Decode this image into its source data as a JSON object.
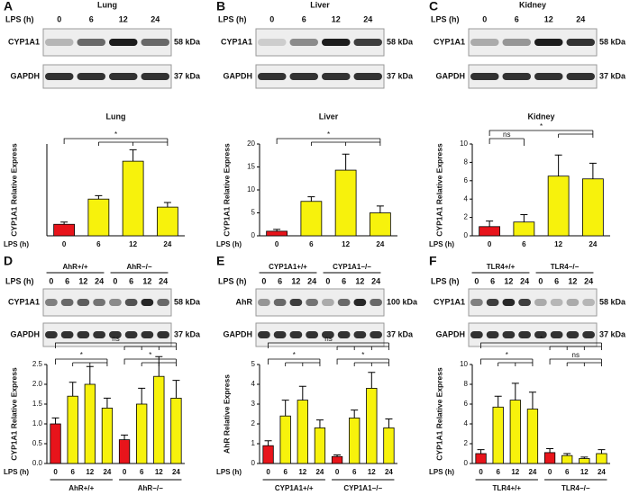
{
  "blots": [
    {
      "letter": "A",
      "title": "Lung",
      "lps_label": "LPS (h)",
      "lanes": [
        "0",
        "6",
        "12",
        "24"
      ],
      "rows": [
        {
          "protein": "CYP1A1",
          "size": "58 kDa"
        },
        {
          "protein": "GAPDH",
          "size": "37 kDa"
        }
      ]
    },
    {
      "letter": "B",
      "title": "Liver",
      "lps_label": "LPS (h)",
      "lanes": [
        "0",
        "6",
        "12",
        "24"
      ],
      "rows": [
        {
          "protein": "CYP1A1",
          "size": "58 kDa"
        },
        {
          "protein": "GAPDH",
          "size": "37 kDa"
        }
      ]
    },
    {
      "letter": "C",
      "title": "Kidney",
      "lps_label": "LPS (h)",
      "lanes": [
        "0",
        "6",
        "12",
        "24"
      ],
      "rows": [
        {
          "protein": "CYP1A1",
          "size": "58 kDa"
        },
        {
          "protein": "GAPDH",
          "size": "37 kDa"
        }
      ]
    },
    {
      "letter": "D",
      "groups": [
        "AhR+/+",
        "AhR−/−"
      ],
      "lps_label": "LPS (h)",
      "lanes": [
        "0",
        "6",
        "12",
        "24",
        "0",
        "6",
        "12",
        "24"
      ],
      "rows": [
        {
          "protein": "CYP1A1",
          "size": "58 kDa"
        },
        {
          "protein": "GAPDH",
          "size": "37 kDa"
        }
      ]
    },
    {
      "letter": "E",
      "groups": [
        "CYP1A1+/+",
        "CYP1A1−/−"
      ],
      "lps_label": "LPS (h)",
      "lanes": [
        "0",
        "6",
        "12",
        "24",
        "0",
        "6",
        "12",
        "24"
      ],
      "rows": [
        {
          "protein": "AhR",
          "size": "100 kDa"
        },
        {
          "protein": "GAPDH",
          "size": "37 kDa"
        }
      ]
    },
    {
      "letter": "F",
      "groups": [
        "TLR4+/+",
        "TLR4−/−"
      ],
      "lps_label": "LPS (h)",
      "lanes": [
        "0",
        "6",
        "12",
        "24",
        "0",
        "6",
        "12",
        "24"
      ],
      "rows": [
        {
          "protein": "CYP1A1",
          "size": "58 kDa"
        },
        {
          "protein": "GAPDH",
          "size": "37 kDa"
        }
      ]
    }
  ],
  "chart_data": [
    {
      "type": "bar",
      "title": "Lung",
      "ylabel": "CYP1A1 Relative Express",
      "xlabel": "LPS (h)",
      "categories": [
        "0",
        "6",
        "12",
        "24"
      ],
      "values": [
        1,
        3.2,
        6.5,
        2.5
      ],
      "errors": [
        0.2,
        0.3,
        1.0,
        0.4
      ],
      "colors": [
        "#e8141b",
        "#f7f20c",
        "#f7f20c",
        "#f7f20c"
      ],
      "ylim": [
        0,
        8
      ],
      "annotations": [
        "*"
      ]
    },
    {
      "type": "bar",
      "title": "Liver",
      "ylabel": "CYP1A1 Relative Express",
      "xlabel": "LPS (h)",
      "categories": [
        "0",
        "6",
        "12",
        "24"
      ],
      "values": [
        1,
        7.5,
        14.3,
        5
      ],
      "errors": [
        0.4,
        1,
        3.5,
        1.5
      ],
      "colors": [
        "#e8141b",
        "#f7f20c",
        "#f7f20c",
        "#f7f20c"
      ],
      "ylim": [
        0,
        20
      ],
      "yticks": [
        0,
        5,
        10,
        15,
        20
      ],
      "annotations": [
        "*"
      ]
    },
    {
      "type": "bar",
      "title": "Kidney",
      "ylabel": "CYP1A1 Relative Express",
      "xlabel": "LPS (h)",
      "categories": [
        "0",
        "6",
        "12",
        "24"
      ],
      "values": [
        1,
        1.5,
        6.5,
        6.2
      ],
      "errors": [
        0.6,
        0.8,
        2.3,
        1.7
      ],
      "colors": [
        "#e8141b",
        "#f7f20c",
        "#f7f20c",
        "#f7f20c"
      ],
      "ylim": [
        0,
        10
      ],
      "yticks": [
        0,
        2,
        4,
        6,
        8,
        10
      ],
      "annotations": [
        "ns",
        "*"
      ]
    },
    {
      "type": "bar",
      "ylabel": "CYP1A1 Relative Express",
      "xlabel": "LPS (h)",
      "categories": [
        "0",
        "6",
        "12",
        "24",
        "0",
        "6",
        "12",
        "24"
      ],
      "groups": [
        "AhR+/+",
        "AhR−/−"
      ],
      "values": [
        1,
        1.7,
        2,
        1.4,
        0.6,
        1.5,
        2.2,
        1.65
      ],
      "errors": [
        0.15,
        0.35,
        0.45,
        0.25,
        0.12,
        0.4,
        0.5,
        0.45
      ],
      "colors": [
        "#e8141b",
        "#f7f20c",
        "#f7f20c",
        "#f7f20c",
        "#e8141b",
        "#f7f20c",
        "#f7f20c",
        "#f7f20c"
      ],
      "ylim": [
        0,
        2.5
      ],
      "yticks": [
        {
          "value": 0,
          "label": "0.0"
        },
        0.5,
        {
          "value": 1,
          "label": "1.0"
        },
        1.5,
        {
          "value": 2,
          "label": "2.0"
        },
        2.5
      ],
      "annotations": [
        "*",
        "*",
        "ns"
      ]
    },
    {
      "type": "bar",
      "ylabel": "AhR Relative Express",
      "xlabel": "LPS (h)",
      "categories": [
        "0",
        "6",
        "12",
        "24",
        "0",
        "6",
        "12",
        "24"
      ],
      "groups": [
        "CYP1A1+/+",
        "CYP1A1−/−"
      ],
      "values": [
        0.9,
        2.4,
        3.2,
        1.8,
        0.35,
        2.3,
        3.8,
        1.8
      ],
      "errors": [
        0.25,
        0.8,
        0.7,
        0.4,
        0.08,
        0.4,
        0.8,
        0.45
      ],
      "colors": [
        "#e8141b",
        "#f7f20c",
        "#f7f20c",
        "#f7f20c",
        "#e8141b",
        "#f7f20c",
        "#f7f20c",
        "#f7f20c"
      ],
      "ylim": [
        0,
        5
      ],
      "yticks": [
        0,
        1,
        2,
        3,
        4,
        5
      ],
      "annotations": [
        "*",
        "*",
        "ns"
      ]
    },
    {
      "type": "bar",
      "ylabel": "CYP1A1 Relative Express",
      "xlabel": "LPS (h)",
      "categories": [
        "0",
        "6",
        "12",
        "24",
        "0",
        "6",
        "12",
        "24"
      ],
      "groups": [
        "TLR4+/+",
        "TLR4−/−"
      ],
      "values": [
        1,
        5.7,
        6.4,
        5.5,
        1.1,
        0.8,
        0.5,
        1
      ],
      "errors": [
        0.4,
        1.1,
        1.7,
        1.7,
        0.4,
        0.2,
        0.15,
        0.4
      ],
      "colors": [
        "#e8141b",
        "#f7f20c",
        "#f7f20c",
        "#f7f20c",
        "#e8141b",
        "#f7f20c",
        "#f7f20c",
        "#f7f20c"
      ],
      "ylim": [
        0,
        10
      ],
      "yticks": [
        0,
        2,
        4,
        6,
        8,
        10
      ],
      "annotations": [
        "*",
        "*",
        "ns"
      ]
    }
  ]
}
